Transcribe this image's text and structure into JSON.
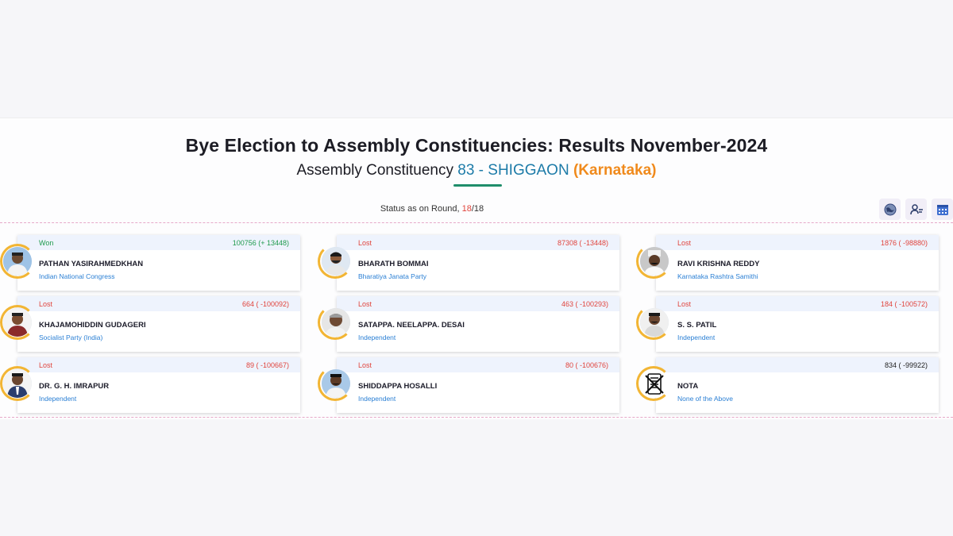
{
  "header": {
    "title": "Bye Election to Assembly Constituencies: Results November-2024",
    "subtitle_prefix": "Assembly Constituency",
    "constituency": "83 - SHIGGAON",
    "state": "(Karnataka)"
  },
  "status": {
    "label": "Status as on Round,",
    "current_round": "18",
    "total_rounds": "/18"
  },
  "toolbar": {
    "icons": [
      "globe-icon",
      "candidate-list-icon",
      "calendar-icon"
    ]
  },
  "colors": {
    "won": "#1f9a4c",
    "lost": "#e0453d",
    "party": "#2a7fd4",
    "ring": "#f2b534",
    "accent": "#1d7ba8",
    "state": "#f08a1c"
  },
  "candidates": [
    {
      "result": "Won",
      "votes": "100756 (+ 13448)",
      "name": "PATHAN YASIRAHMEDKHAN",
      "party": "Indian National Congress"
    },
    {
      "result": "Lost",
      "votes": "87308 ( -13448)",
      "name": "BHARATH BOMMAI",
      "party": "Bharatiya Janata Party"
    },
    {
      "result": "Lost",
      "votes": "1876 ( -98880)",
      "name": "RAVI KRISHNA REDDY",
      "party": "Karnataka Rashtra Samithi"
    },
    {
      "result": "Lost",
      "votes": "664 ( -100092)",
      "name": "KHAJAMOHIDDIN GUDAGERI",
      "party": "Socialist Party (India)"
    },
    {
      "result": "Lost",
      "votes": "463 ( -100293)",
      "name": "SATAPPA. NEELAPPA. DESAI",
      "party": "Independent"
    },
    {
      "result": "Lost",
      "votes": "184 ( -100572)",
      "name": "S. S. PATIL",
      "party": "Independent"
    },
    {
      "result": "Lost",
      "votes": "89 ( -100667)",
      "name": "DR. G. H. IMRAPUR",
      "party": "Independent"
    },
    {
      "result": "Lost",
      "votes": "80 ( -100676)",
      "name": "SHIDDAPPA HOSALLI",
      "party": "Independent"
    },
    {
      "result": "",
      "votes": "834 ( -99922)",
      "name": "NOTA",
      "party": "None of the Above"
    }
  ]
}
